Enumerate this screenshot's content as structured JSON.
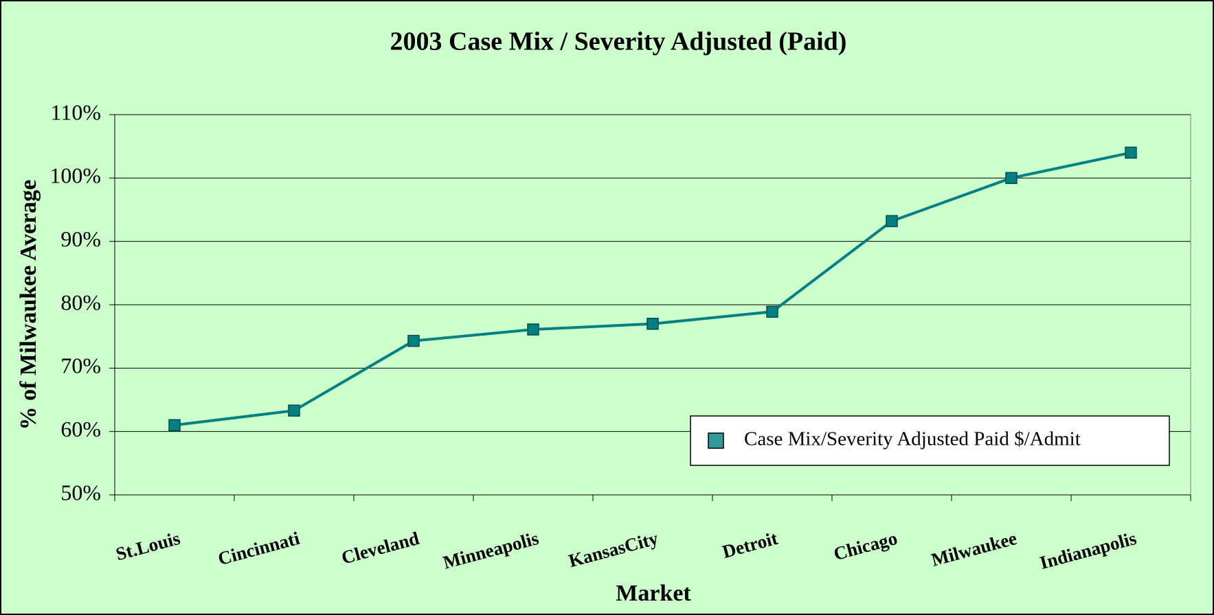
{
  "chart_data": {
    "type": "line",
    "title": "2003 Case Mix / Severity Adjusted (Paid)",
    "x_label": "Market",
    "y_label": "% of Milwaukee Average",
    "categories": [
      "St.Louis",
      "Cincinnati",
      "Cleveland",
      "Minneapolis",
      "KansasCity",
      "Detroit",
      "Chicago",
      "Milwaukee",
      "Indianapolis"
    ],
    "series": [
      {
        "name": "Case Mix/Severity Adjusted Paid $/Admit",
        "color": "#008080",
        "values": [
          61,
          63.3,
          74.3,
          76.1,
          77,
          78.9,
          93.2,
          100,
          104
        ]
      }
    ],
    "ylim": [
      50,
      110
    ],
    "yticks": [
      {
        "value": 50,
        "label": "50%"
      },
      {
        "value": 60,
        "label": "60%"
      },
      {
        "value": 70,
        "label": "70%"
      },
      {
        "value": 80,
        "label": "80%"
      },
      {
        "value": 90,
        "label": "90%"
      },
      {
        "value": 100,
        "label": "100%"
      },
      {
        "value": 110,
        "label": "110%"
      }
    ],
    "grid": true,
    "legend": "lower right"
  }
}
